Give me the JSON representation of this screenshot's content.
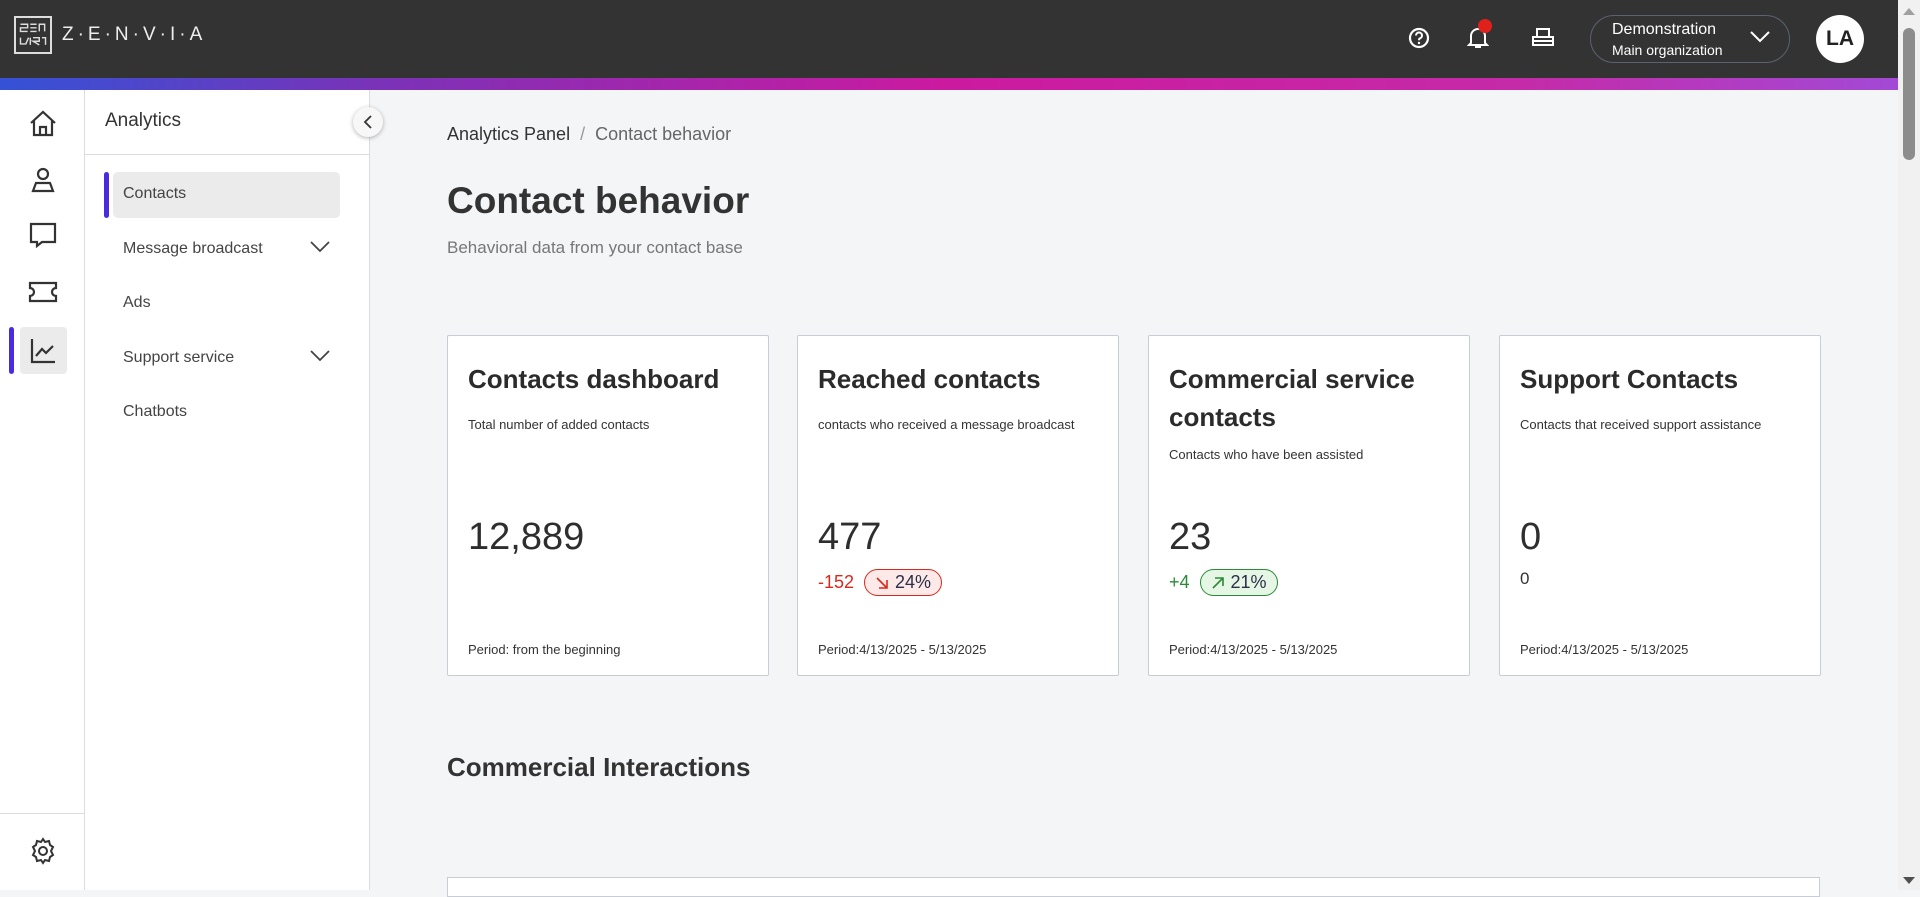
{
  "app": {
    "brand": "Z·E·N·V·I·A",
    "brand_color": "#333333"
  },
  "header": {
    "org_name": "Demonstration",
    "org_sub": "Main organization",
    "avatar": "LA",
    "icons": [
      "help-icon",
      "bell-icon",
      "printer-icon"
    ],
    "notification_dot_color": "#e0201b"
  },
  "rail": {
    "icons": [
      "home-icon",
      "user-icon",
      "chat-icon",
      "ticket-icon",
      "chart-icon",
      "gear-icon"
    ],
    "active": "chart-icon",
    "accent": "#4a2be0"
  },
  "sidebar": {
    "title": "Analytics",
    "items": [
      {
        "label": "Contacts",
        "active": true
      },
      {
        "label": "Message broadcast",
        "expandable": true
      },
      {
        "label": "Ads"
      },
      {
        "label": "Support service",
        "expandable": true
      },
      {
        "label": "Chatbots"
      }
    ]
  },
  "breadcrumb": {
    "root": "Analytics Panel",
    "separator": "/",
    "current": "Contact behavior"
  },
  "page": {
    "title": "Contact behavior",
    "subtitle": "Behavioral data from your contact base"
  },
  "cards": [
    {
      "title": "Contacts dashboard",
      "desc": "Total number of added contacts",
      "value": "12,889",
      "period": "Period: from the beginning"
    },
    {
      "title": "Reached contacts",
      "desc": "contacts who received a message broadcast",
      "value": "477",
      "delta": "-152",
      "pct": "24%",
      "trend": "down",
      "delta_color": "#d9281e",
      "period": "Period:4/13/2025 - 5/13/2025"
    },
    {
      "title": "Commercial service contacts",
      "desc": "Contacts who have been assisted",
      "value": "23",
      "delta": "+4",
      "pct": "21%",
      "trend": "up",
      "delta_color": "#2a8a36",
      "period": "Period:4/13/2025 - 5/13/2025"
    },
    {
      "title": "Support Contacts",
      "desc": "Contacts that received support assistance",
      "value": "0",
      "delta": "0",
      "period": "Period:4/13/2025 - 5/13/2025"
    }
  ],
  "section": {
    "title": "Commercial Interactions"
  }
}
